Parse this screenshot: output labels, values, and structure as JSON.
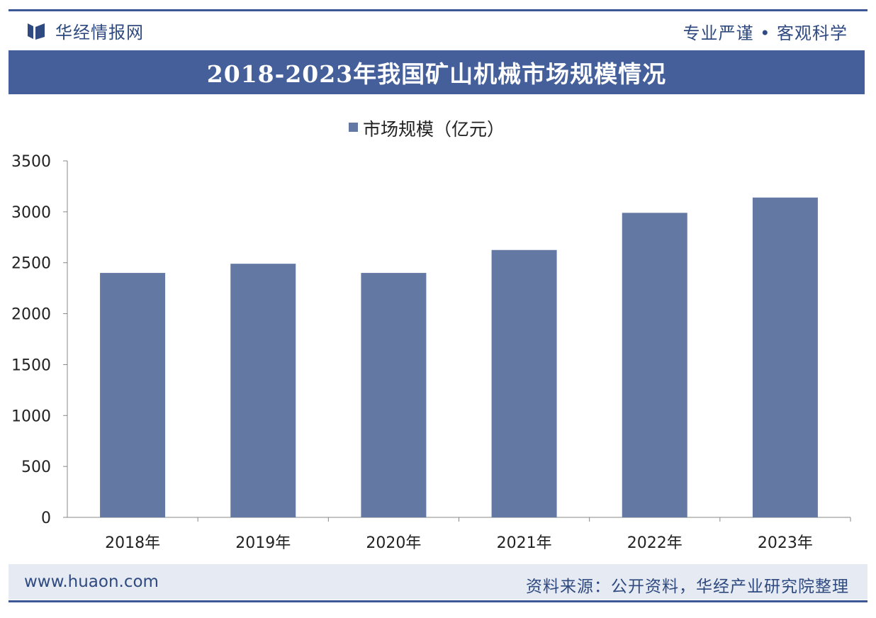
{
  "header": {
    "brand": "华经情报网",
    "slogan": "专业严谨 • 客观科学"
  },
  "title": "2018-2023年我国矿山机械市场规模情况",
  "footer": {
    "website": "www.huaon.com",
    "source": "资料来源：公开资料，华经产业研究院整理"
  },
  "colors": {
    "bar": "#6478a4",
    "banner": "#445f9a",
    "accent": "#2f4a80"
  },
  "chart_data": {
    "type": "bar",
    "categories": [
      "2018年",
      "2019年",
      "2020年",
      "2021年",
      "2022年",
      "2023年"
    ],
    "series": [
      {
        "name": "市场规模（亿元）",
        "values": [
          2400,
          2490,
          2400,
          2625,
          2990,
          3140
        ]
      }
    ],
    "ylim": [
      0,
      3500
    ],
    "yticks": [
      0,
      500,
      1000,
      1500,
      2000,
      2500,
      3000,
      3500
    ],
    "xlabel": "",
    "ylabel": "",
    "legend": "top-center",
    "grid": false
  }
}
